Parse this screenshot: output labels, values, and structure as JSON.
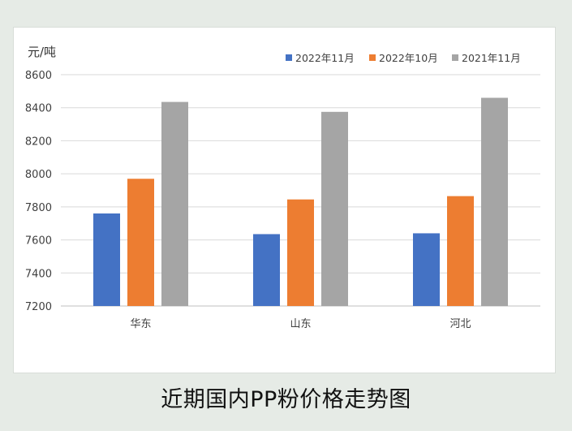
{
  "caption": "近期国内PP粉价格走势图",
  "chart_data": {
    "type": "bar",
    "unit_label": "元/吨",
    "categories": [
      "华东",
      "山东",
      "河北"
    ],
    "series": [
      {
        "name": "2022年11月",
        "color": "#4472c4",
        "values": [
          7760,
          7635,
          7640
        ]
      },
      {
        "name": "2022年10月",
        "color": "#ed7d31",
        "values": [
          7970,
          7845,
          7865
        ]
      },
      {
        "name": "2021年11月",
        "color": "#a5a5a5",
        "values": [
          8435,
          8375,
          8460
        ]
      }
    ],
    "ylim": [
      7200,
      8600
    ],
    "yticks": [
      "7200",
      "7400",
      "7600",
      "7800",
      "8000",
      "8200",
      "8400",
      "8600"
    ],
    "grid": true,
    "legend_position": "top-right"
  }
}
